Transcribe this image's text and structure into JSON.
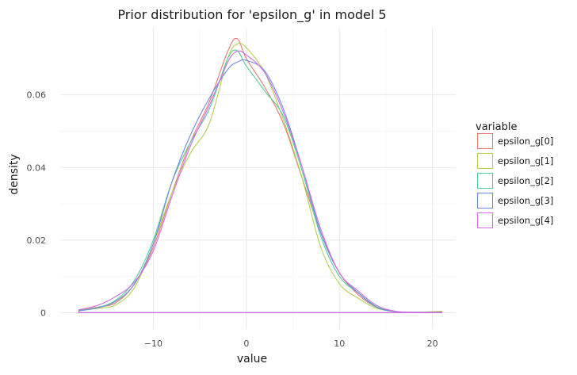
{
  "chart_data": {
    "type": "line",
    "title": "Prior distribution for 'epsilon_g' in model 5",
    "xlabel": "value",
    "ylabel": "density",
    "xlim": [
      -20,
      22.5
    ],
    "ylim": [
      -0.0045,
      0.0785
    ],
    "x_ticks": [
      -10,
      0,
      10,
      20
    ],
    "x_tick_labels": [
      "−10",
      "0",
      "10",
      "20"
    ],
    "y_ticks": [
      0,
      0.02,
      0.04,
      0.06
    ],
    "y_tick_labels": [
      "0",
      "0.02",
      "0.04",
      "0.06"
    ],
    "grid": true,
    "legend": {
      "title": "variable",
      "placement": "right"
    },
    "x": [
      -18,
      -16,
      -14,
      -12,
      -10,
      -8,
      -6,
      -4,
      -2,
      -1,
      0,
      2,
      4,
      6,
      8,
      10,
      12,
      14,
      16,
      18,
      21
    ],
    "series": [
      {
        "name": "epsilon_g[0]",
        "color": "#e8766c",
        "values": [
          0.0007,
          0.0015,
          0.0028,
          0.008,
          0.018,
          0.033,
          0.047,
          0.058,
          0.072,
          0.0755,
          0.07,
          0.062,
          0.052,
          0.037,
          0.022,
          0.011,
          0.005,
          0.0015,
          0.0003,
          0.0001,
          0.0002
        ]
      },
      {
        "name": "epsilon_g[1]",
        "color": "#b3cf4f",
        "values": [
          0.0008,
          0.0012,
          0.0022,
          0.007,
          0.019,
          0.033,
          0.044,
          0.052,
          0.07,
          0.074,
          0.073,
          0.066,
          0.053,
          0.037,
          0.018,
          0.008,
          0.004,
          0.0012,
          0.0003,
          0.0001,
          0.0004
        ]
      },
      {
        "name": "epsilon_g[2]",
        "color": "#50cf9a",
        "values": [
          0.0006,
          0.0014,
          0.0035,
          0.009,
          0.02,
          0.036,
          0.047,
          0.056,
          0.07,
          0.0722,
          0.068,
          0.061,
          0.054,
          0.039,
          0.021,
          0.01,
          0.0055,
          0.0017,
          0.0003,
          0.0001,
          0.0001
        ]
      },
      {
        "name": "epsilon_g[3]",
        "color": "#6c8cde",
        "values": [
          0.0005,
          0.0013,
          0.0032,
          0.008,
          0.019,
          0.036,
          0.049,
          0.059,
          0.067,
          0.069,
          0.0695,
          0.0665,
          0.056,
          0.04,
          0.022,
          0.011,
          0.0055,
          0.0015,
          0.0003,
          0.0001,
          0.0001
        ]
      },
      {
        "name": "epsilon_g[4]",
        "color": "#d36ae8",
        "values": [
          0.0008,
          0.002,
          0.0045,
          0.0085,
          0.017,
          0.032,
          0.046,
          0.057,
          0.069,
          0.072,
          0.071,
          0.066,
          0.055,
          0.04,
          0.023,
          0.011,
          0.006,
          0.002,
          0.0004,
          0.0001,
          0.0001
        ]
      }
    ]
  }
}
